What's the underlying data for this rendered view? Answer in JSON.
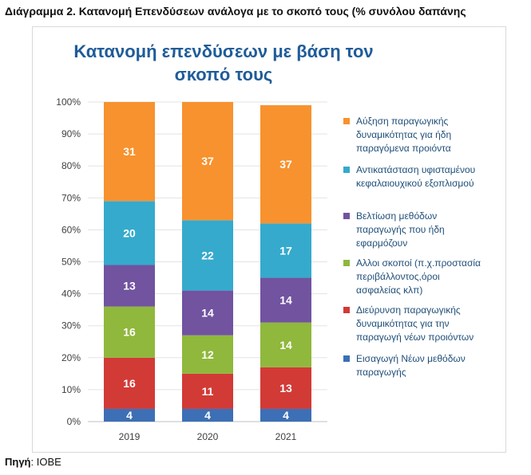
{
  "caption": "Διάγραμμα 2. Κατανομή Επενδύσεων ανάλογα με το σκοπό τους (% συνόλου δαπάνης",
  "source_label": "Πηγή",
  "source_value": ": IOBE",
  "chart_data": {
    "type": "bar",
    "stacked": true,
    "title_line1": "Κατανομή επενδύσεων με βάση τον",
    "title_line2": "σκοπό τους",
    "categories": [
      "2019",
      "2020",
      "2021"
    ],
    "y_ticks": [
      "0%",
      "10%",
      "20%",
      "30%",
      "40%",
      "50%",
      "60%",
      "70%",
      "80%",
      "90%",
      "100%"
    ],
    "ylim": [
      0,
      100
    ],
    "legend_position": "right",
    "series": [
      {
        "name": "Εισαγωγή Νέων μεθόδων παραγωγής",
        "color": "#3c6fb6",
        "values": [
          4,
          4,
          4
        ]
      },
      {
        "name": "Διεύρυνση παραγωγικής δυναμικότητας για την παραγωγή νέων προιόντων",
        "color": "#d23a36",
        "values": [
          16,
          11,
          13
        ]
      },
      {
        "name": "Αλλοι σκοποί (π.χ.προστασία περιβάλλοντος,όροι ασφαλείας κλπ)",
        "color": "#8fb83c",
        "values": [
          16,
          12,
          14
        ]
      },
      {
        "name": "Βελτίωση μεθόδων παραγωγής που ήδη εφαρμόζουν",
        "color": "#7153a0",
        "values": [
          13,
          14,
          14
        ]
      },
      {
        "name": "Αντικατάσταση υφισταμένου κεφαλαιουχικού εξοπλισμού",
        "color": "#35aacd",
        "values": [
          20,
          22,
          17
        ]
      },
      {
        "name": "Αύξηση παραγωγικής δυναμικότητας για ήδη παραγόμενα προιόντα",
        "color": "#f7922e",
        "values": [
          31,
          37,
          37
        ]
      }
    ],
    "legend_lines": [
      [
        "Αύξηση παραγωγικής",
        "δυναμικότητας για ήδη",
        "παραγόμενα προιόντα"
      ],
      [
        "Αντικατάσταση υφισταμένου",
        "κεφαλαιουχικού εξοπλισμού"
      ],
      [
        "Βελτίωση μεθόδων",
        "παραγωγής που ήδη",
        "εφαρμόζουν"
      ],
      [
        "Αλλοι σκοποί (π.χ.προστασία",
        "περιβάλλοντος,όροι",
        "ασφαλείας κλπ)"
      ],
      [
        "Διεύρυνση παραγωγικής",
        "δυναμικότητας για την",
        "παραγωγή νέων προιόντων"
      ],
      [
        "Εισαγωγή Νέων μεθόδων",
        "παραγωγής"
      ]
    ]
  }
}
